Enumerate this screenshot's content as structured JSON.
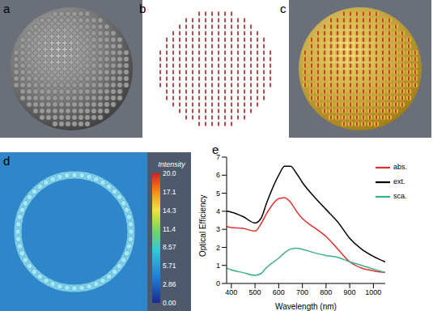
{
  "panel_labels": [
    "a",
    "b",
    "c",
    "d",
    "e"
  ],
  "colorbar": {
    "title": "Intensity",
    "range": [
      0,
      20
    ],
    "ticks": [
      {
        "value": 0,
        "label": "0.00"
      },
      {
        "value": 2.86,
        "label": "2.86"
      },
      {
        "value": 5.71,
        "label": "5.71"
      },
      {
        "value": 8.57,
        "label": "8.57"
      },
      {
        "value": 11.43,
        "label": "11.4"
      },
      {
        "value": 14.29,
        "label": "14.3"
      },
      {
        "value": 17.14,
        "label": "17.1"
      },
      {
        "value": 20,
        "label": "20.0"
      }
    ]
  },
  "chart_data": {
    "type": "line",
    "x_label": "Wavelength (nm)",
    "y_label": "Optical Efficiency",
    "x": [
      380,
      400,
      450,
      500,
      525,
      550,
      600,
      625,
      650,
      675,
      700,
      750,
      800,
      850,
      900,
      950,
      1000,
      1050
    ],
    "series": [
      {
        "name": "ext.",
        "color": "#000000",
        "values": [
          4.0,
          3.95,
          3.7,
          3.35,
          3.6,
          4.5,
          6.0,
          6.5,
          6.5,
          6.1,
          5.6,
          4.8,
          4.1,
          3.4,
          2.5,
          1.9,
          1.5,
          1.2
        ]
      },
      {
        "name": "abs.",
        "color": "#e0302c",
        "values": [
          3.15,
          3.1,
          3.05,
          2.9,
          3.3,
          3.9,
          4.7,
          4.75,
          4.5,
          4.0,
          3.6,
          3.1,
          2.6,
          1.9,
          1.2,
          0.85,
          0.7,
          0.6
        ]
      },
      {
        "name": "sca.",
        "color": "#3fae8a",
        "values": [
          0.85,
          0.75,
          0.6,
          0.45,
          0.55,
          0.9,
          1.4,
          1.7,
          1.9,
          1.95,
          1.9,
          1.7,
          1.55,
          1.45,
          1.2,
          1.0,
          0.8,
          0.6
        ]
      }
    ],
    "xlim": [
      380,
      1050
    ],
    "xticks": [
      400,
      500,
      600,
      700,
      800,
      900,
      1000
    ],
    "ylim": [
      0,
      7
    ],
    "yticks": [
      0,
      1,
      2,
      3,
      4,
      5,
      6,
      7
    ],
    "legend": "top-right",
    "grid": false
  }
}
